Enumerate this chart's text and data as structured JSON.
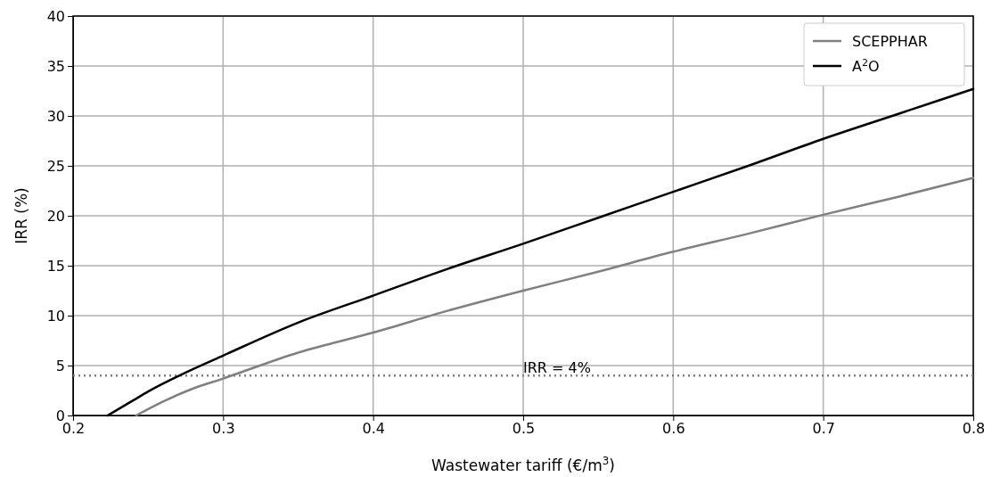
{
  "chart_data": {
    "type": "line",
    "xlabel": "Wastewater tariff (€/m$^{3}$)",
    "ylabel": "IRR (%)",
    "xlim": [
      0.2,
      0.8
    ],
    "xticks": [
      {
        "value": 0.2,
        "label": "0.2"
      },
      {
        "value": 0.3,
        "label": "0.3"
      },
      {
        "value": 0.4,
        "label": "0.4"
      },
      {
        "value": 0.5,
        "label": "0.5"
      },
      {
        "value": 0.6,
        "label": "0.6"
      },
      {
        "value": 0.7,
        "label": "0.7"
      },
      {
        "value": 0.8,
        "label": "0.8"
      }
    ],
    "ylim": [
      0,
      40
    ],
    "yticks": [
      0,
      5,
      10,
      15,
      20,
      25,
      30,
      35,
      40
    ],
    "grid": true,
    "legend": "top right",
    "line_style": "solid",
    "series": [
      {
        "name": "SCEPPHAR",
        "color": "#808080",
        "x": [
          0.242,
          0.26,
          0.28,
          0.3,
          0.35,
          0.4,
          0.45,
          0.5,
          0.55,
          0.6,
          0.65,
          0.7,
          0.75,
          0.8
        ],
        "values": [
          0,
          1.4,
          2.7,
          3.7,
          6.3,
          8.3,
          10.5,
          12.5,
          14.4,
          16.4,
          18.2,
          20.1,
          21.9,
          23.8
        ]
      },
      {
        "name": "A$^{2}$O",
        "color": "#000000",
        "x": [
          0.223,
          0.24,
          0.25,
          0.275,
          0.3,
          0.35,
          0.4,
          0.45,
          0.5,
          0.55,
          0.6,
          0.65,
          0.7,
          0.75,
          0.8
        ],
        "values": [
          0,
          1.5,
          2.4,
          4.3,
          6.0,
          9.3,
          12.0,
          14.7,
          17.2,
          19.8,
          22.4,
          25.0,
          27.7,
          30.2,
          32.7
        ]
      }
    ],
    "ref_lines": [
      {
        "axis": "y",
        "value": 4,
        "label": "IRR = 4%",
        "color": "#808080",
        "line_style": "dotted"
      }
    ]
  }
}
